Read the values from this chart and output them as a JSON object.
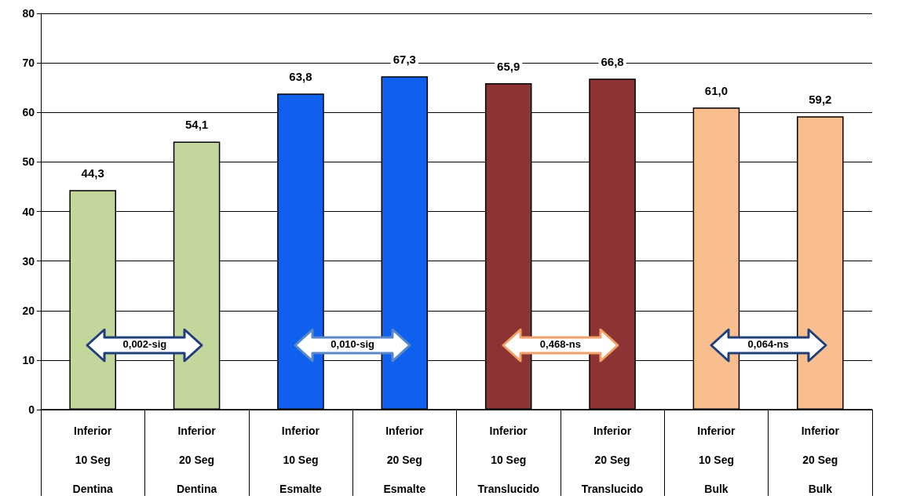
{
  "chart_data": {
    "type": "bar",
    "categories": [
      "Inferior\n10 Seg\nDentina",
      "Inferior\n20 Seg\nDentina",
      "Inferior\n10 Seg\nEsmalte",
      "Inferior\n20 Seg\nEsmalte",
      "Inferior\n10 Seg\nTranslucido",
      "Inferior\n20 Seg\nTranslucido",
      "Inferior\n10 Seg\nBulk",
      "Inferior\n20 Seg\nBulk"
    ],
    "values": [
      44.3,
      54.1,
      63.8,
      67.3,
      65.9,
      66.8,
      61.0,
      59.2
    ],
    "colors": [
      "#c3d69b",
      "#c3d69b",
      "#1060f0",
      "#1060f0",
      "#8c3333",
      "#8c3333",
      "#f9be8e",
      "#f9be8e"
    ],
    "value_labels": [
      "44,3",
      "54,1",
      "63,8",
      "67,3",
      "65,9",
      "66,8",
      "61,0",
      "59,2"
    ],
    "ylim": [
      0,
      80
    ],
    "yticks": [
      0,
      10,
      20,
      30,
      40,
      50,
      60,
      70,
      80
    ],
    "grid": "y",
    "annotations": [
      "0,002-sig",
      "0,010-sig",
      "0,468-ns",
      "0,064-ns"
    ]
  }
}
